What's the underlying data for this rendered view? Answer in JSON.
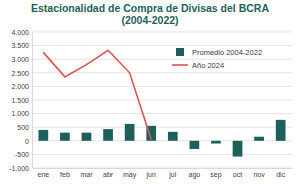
{
  "chart_data": {
    "type": "bar",
    "title": "Estacionalidad de Compra de Divisas del BCRA",
    "subtitle": "(2004-2022)",
    "categories": [
      "ene",
      "feb",
      "mar",
      "abr",
      "may",
      "jun",
      "jul",
      "ago",
      "sep",
      "oct",
      "nov",
      "dic"
    ],
    "series": [
      {
        "name": "Promedio 2004-2022",
        "type": "bar",
        "color": "#1f5f5b",
        "values": [
          400,
          300,
          300,
          430,
          620,
          550,
          330,
          -300,
          -100,
          -580,
          150,
          770
        ]
      },
      {
        "name": "Año 2024",
        "type": "line",
        "color": "#e05252",
        "line_style": "solid",
        "values": [
          3250,
          2350,
          2800,
          3330,
          2500,
          50,
          null,
          null,
          null,
          null,
          null,
          null
        ]
      }
    ],
    "ylim": [
      -1000,
      4000
    ],
    "yticks": [
      {
        "value": -1000,
        "label": "-1.000"
      },
      -500,
      0,
      500,
      {
        "value": 1000,
        "label": "1.000"
      },
      {
        "value": 1500,
        "label": "1.500"
      },
      {
        "value": 2000,
        "label": "2.000"
      },
      {
        "value": 2500,
        "label": "2.500"
      },
      {
        "value": 3000,
        "label": "3.000"
      },
      {
        "value": 3500,
        "label": "3.500"
      },
      {
        "value": 4000,
        "label": "4.000"
      }
    ],
    "grid": true,
    "legend": "top-right"
  }
}
